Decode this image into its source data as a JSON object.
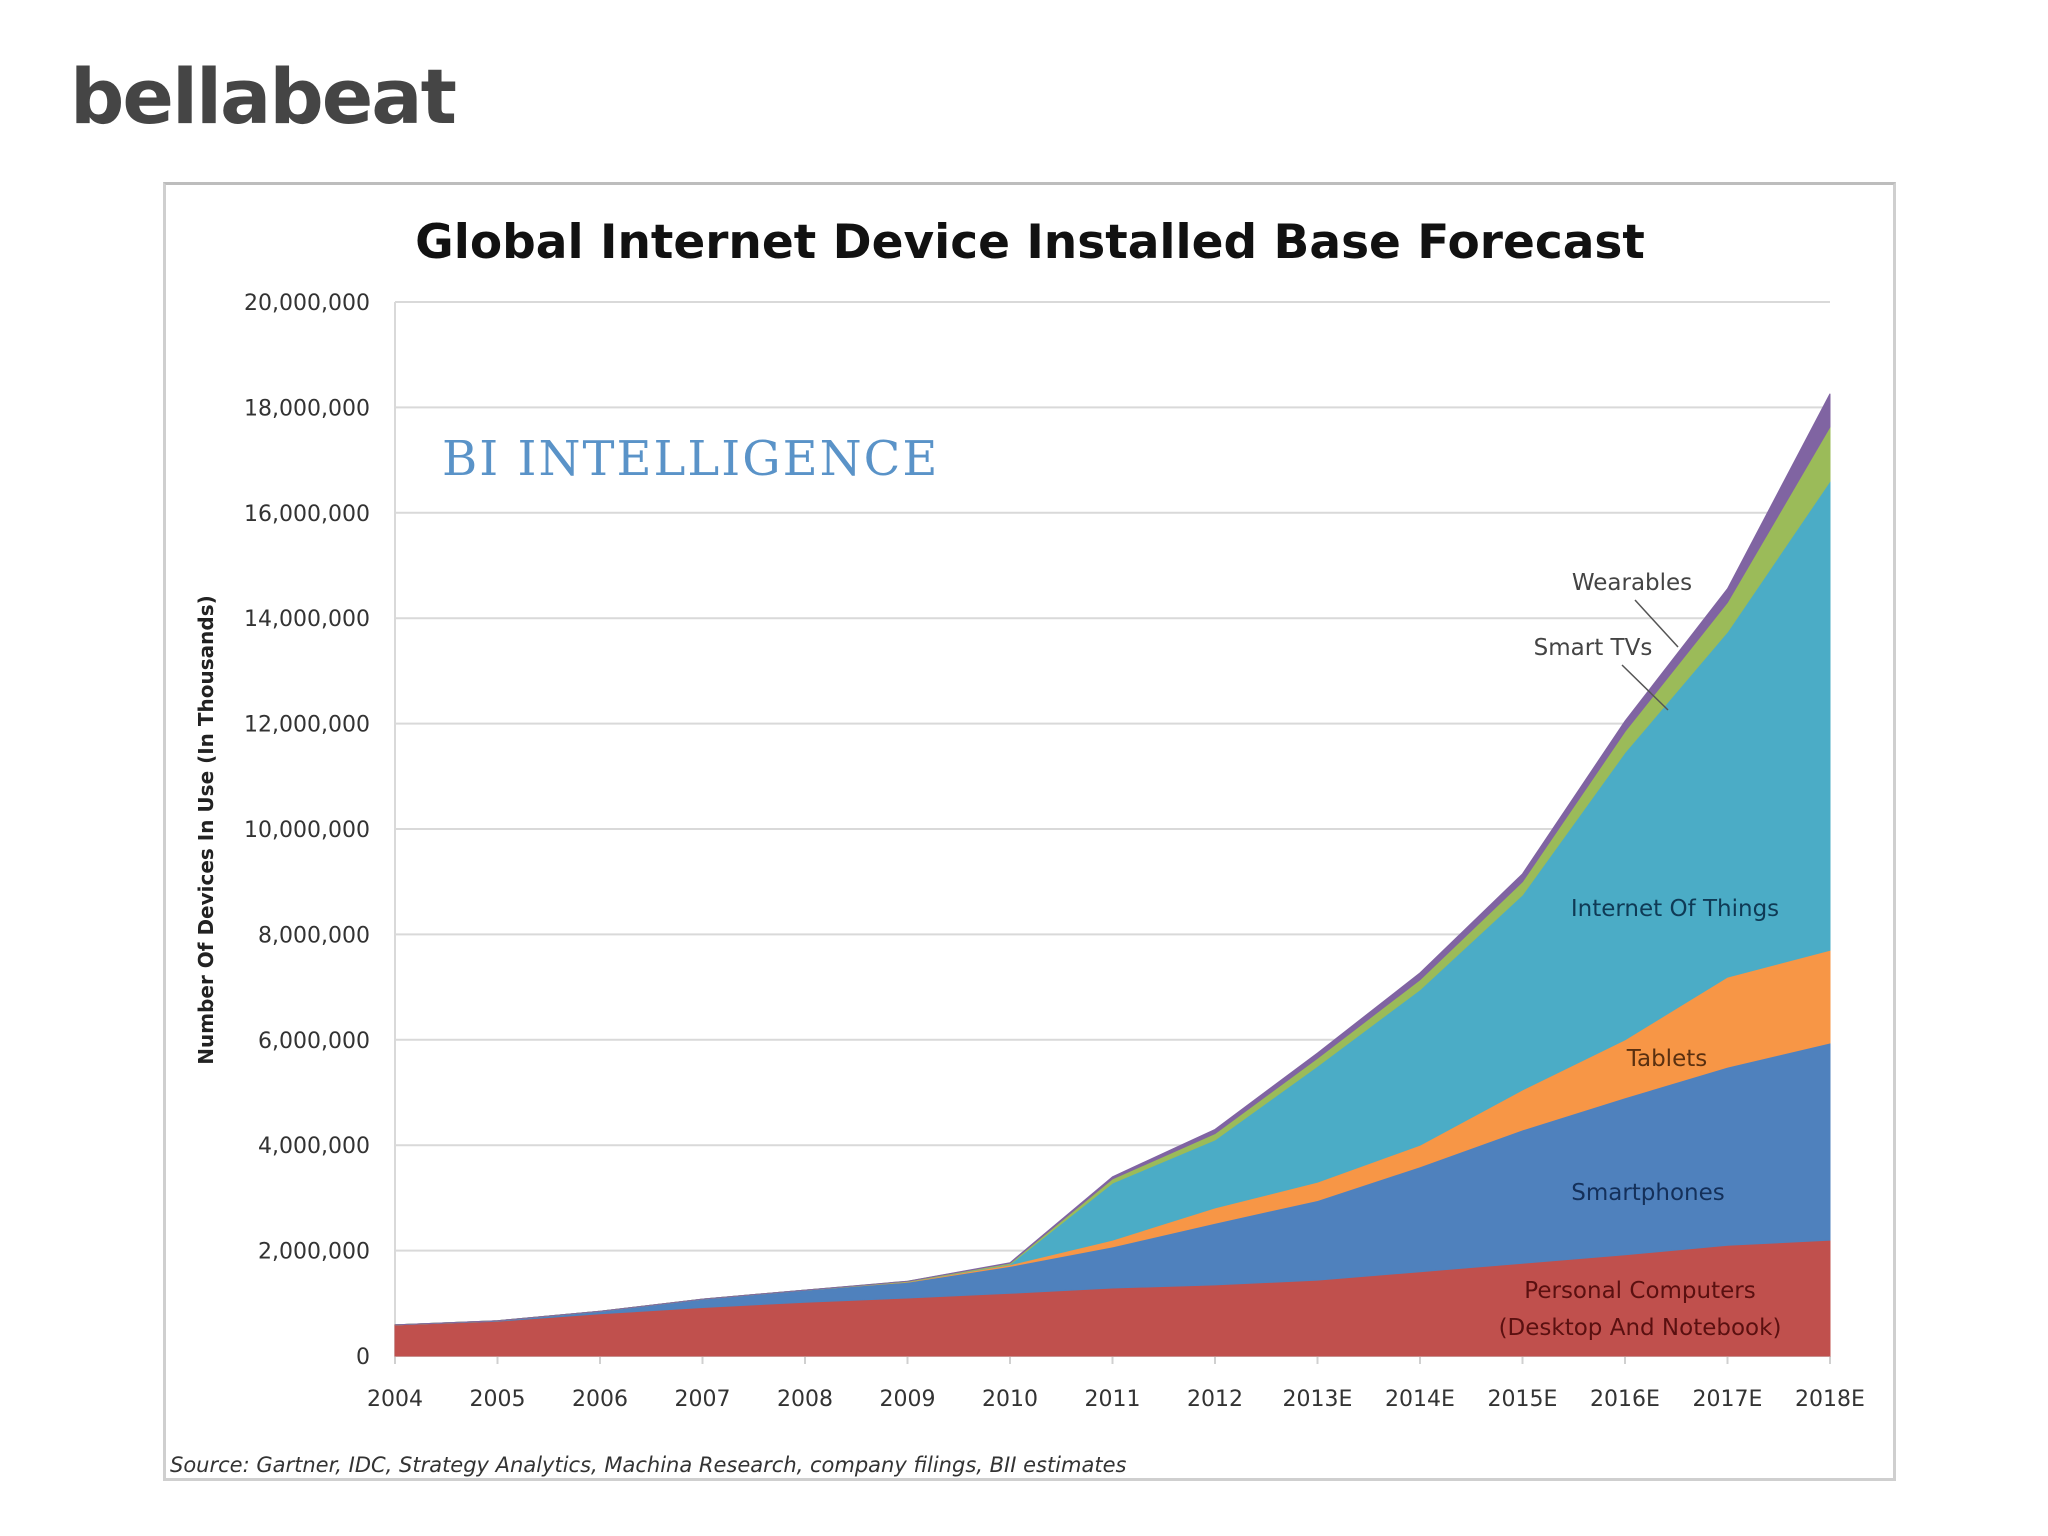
{
  "brand": {
    "name": "bellabeat"
  },
  "chart_data": {
    "type": "area",
    "stacked": true,
    "title": "Global Internet Device Installed Base Forecast",
    "watermark": "BI INTELLIGENCE",
    "xlabel": "",
    "ylabel": "Number Of Devices In Use (In Thousands)",
    "ylim": [
      0,
      20000000
    ],
    "yticks": [
      0,
      2000000,
      4000000,
      6000000,
      8000000,
      10000000,
      12000000,
      14000000,
      16000000,
      18000000,
      20000000
    ],
    "ytick_labels": [
      "0",
      "2,000,000",
      "4,000,000",
      "6,000,000",
      "8,000,000",
      "10,000,000",
      "12,000,000",
      "14,000,000",
      "16,000,000",
      "18,000,000",
      "20,000,000"
    ],
    "grid": true,
    "legend": "inline-labels",
    "x": [
      "2004",
      "2005",
      "2006",
      "2007",
      "2008",
      "2009",
      "2010",
      "2011",
      "2012",
      "2013E",
      "2014E",
      "2015E",
      "2016E",
      "2017E",
      "2018E"
    ],
    "series": [
      {
        "name": "Personal Computers (Desktop And Notebook)",
        "color": "#c0504d",
        "label_color": "#5a1010",
        "values": [
          590000,
          660000,
          800000,
          920000,
          1020000,
          1100000,
          1190000,
          1290000,
          1350000,
          1440000,
          1600000,
          1760000,
          1920000,
          2100000,
          2200000
        ]
      },
      {
        "name": "Smartphones",
        "color": "#4f81bd",
        "label_color": "#14305a",
        "values": [
          0,
          10000,
          50000,
          160000,
          230000,
          300000,
          510000,
          780000,
          1170000,
          1510000,
          1990000,
          2530000,
          2980000,
          3380000,
          3740000
        ]
      },
      {
        "name": "Tablets",
        "color": "#f79646",
        "label_color": "#5a3010",
        "values": [
          0,
          0,
          0,
          0,
          0,
          10000,
          30000,
          130000,
          290000,
          350000,
          410000,
          760000,
          1100000,
          1710000,
          1760000
        ]
      },
      {
        "name": "Internet Of Things",
        "color": "#4bacc6",
        "label_color": "#0f3a55",
        "values": [
          0,
          0,
          0,
          0,
          0,
          0,
          10000,
          1080000,
          1290000,
          2200000,
          2950000,
          3700000,
          5450000,
          6550000,
          8900000
        ]
      },
      {
        "name": "Smart TVs",
        "color": "#9bbb59",
        "label_color": "#444444",
        "values": [
          0,
          0,
          0,
          0,
          0,
          10000,
          20000,
          80000,
          120000,
          150000,
          190000,
          250000,
          400000,
          560000,
          1030000
        ]
      },
      {
        "name": "Wearables",
        "color": "#8064a2",
        "label_color": "#444444",
        "values": [
          0,
          0,
          0,
          0,
          0,
          0,
          10000,
          40000,
          80000,
          100000,
          130000,
          150000,
          200000,
          260000,
          630000
        ]
      }
    ],
    "annotations": {
      "pc_line1": "Personal Computers",
      "pc_line2": "(Desktop And Notebook)",
      "smartphones": "Smartphones",
      "tablets": "Tablets",
      "iot": "Internet Of Things",
      "smart_tvs": "Smart TVs",
      "wearables": "Wearables"
    },
    "source": "Source: Gartner, IDC, Strategy Analytics, Machina Research, company filings, BII estimates"
  }
}
